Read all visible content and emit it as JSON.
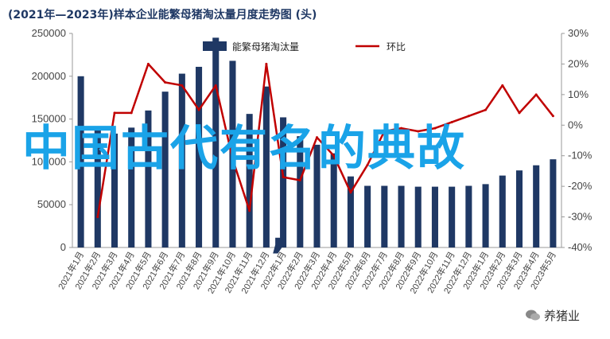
{
  "title": "(2021年—2023年)样本企业能繁母猪淘汰量月度走势图 (头)",
  "overlay_text": "中国古代有名的典故",
  "overlay_comma": ",",
  "watermark": "养猪业",
  "colors": {
    "bar": "#1f3864",
    "line": "#c00000",
    "overlay": "#1aa3e8"
  },
  "chart_data": {
    "type": "bar",
    "categories": [
      "2021年1月",
      "2021年2月",
      "2021年3月",
      "2021年4月",
      "2021年5月",
      "2021年6月",
      "2021年7月",
      "2021年8月",
      "2021年9月",
      "2021年10月",
      "2021年11月",
      "2021年12月",
      "2022年1月",
      "2022年2月",
      "2022年3月",
      "2022年4月",
      "2022年5月",
      "2022年6月",
      "2022年7月",
      "2022年8月",
      "2022年9月",
      "2022年10月",
      "2022年11月",
      "2022年12月",
      "2023年1月",
      "2023年2月",
      "2023年3月",
      "2023年4月",
      "2023年5月"
    ],
    "series": [
      {
        "name": "能繁母猪淘汰量",
        "type": "bar",
        "axis": "left",
        "values": [
          200000,
          140000,
          133000,
          140000,
          160000,
          182000,
          203000,
          211000,
          245000,
          218000,
          156000,
          188000,
          152000,
          130000,
          120000,
          110000,
          83000,
          72000,
          72000,
          72000,
          71000,
          71000,
          71000,
          72000,
          74000,
          84000,
          90000,
          96000,
          103000
        ]
      },
      {
        "name": "环比",
        "type": "line",
        "axis": "right",
        "values": [
          null,
          -0.3,
          0.04,
          0.04,
          0.2,
          0.14,
          0.13,
          0.05,
          0.13,
          -0.11,
          -0.28,
          0.2,
          -0.17,
          -0.18,
          -0.04,
          -0.1,
          -0.22,
          -0.13,
          -0.02,
          -0.01,
          -0.02,
          -0.01,
          0.01,
          0.03,
          0.05,
          0.13,
          0.04,
          0.1,
          0.03
        ]
      }
    ],
    "left_axis": {
      "ylim": [
        0,
        250000
      ],
      "ticks": [
        "0",
        "50000",
        "100000",
        "150000",
        "200000",
        "250000"
      ]
    },
    "right_axis": {
      "ylim": [
        -0.4,
        0.3
      ],
      "ticks": [
        "-40%",
        "-30%",
        "-20%",
        "-10%",
        "0%",
        "10%",
        "20%",
        "30%"
      ]
    },
    "legend_position": "top-center",
    "grid": false
  }
}
